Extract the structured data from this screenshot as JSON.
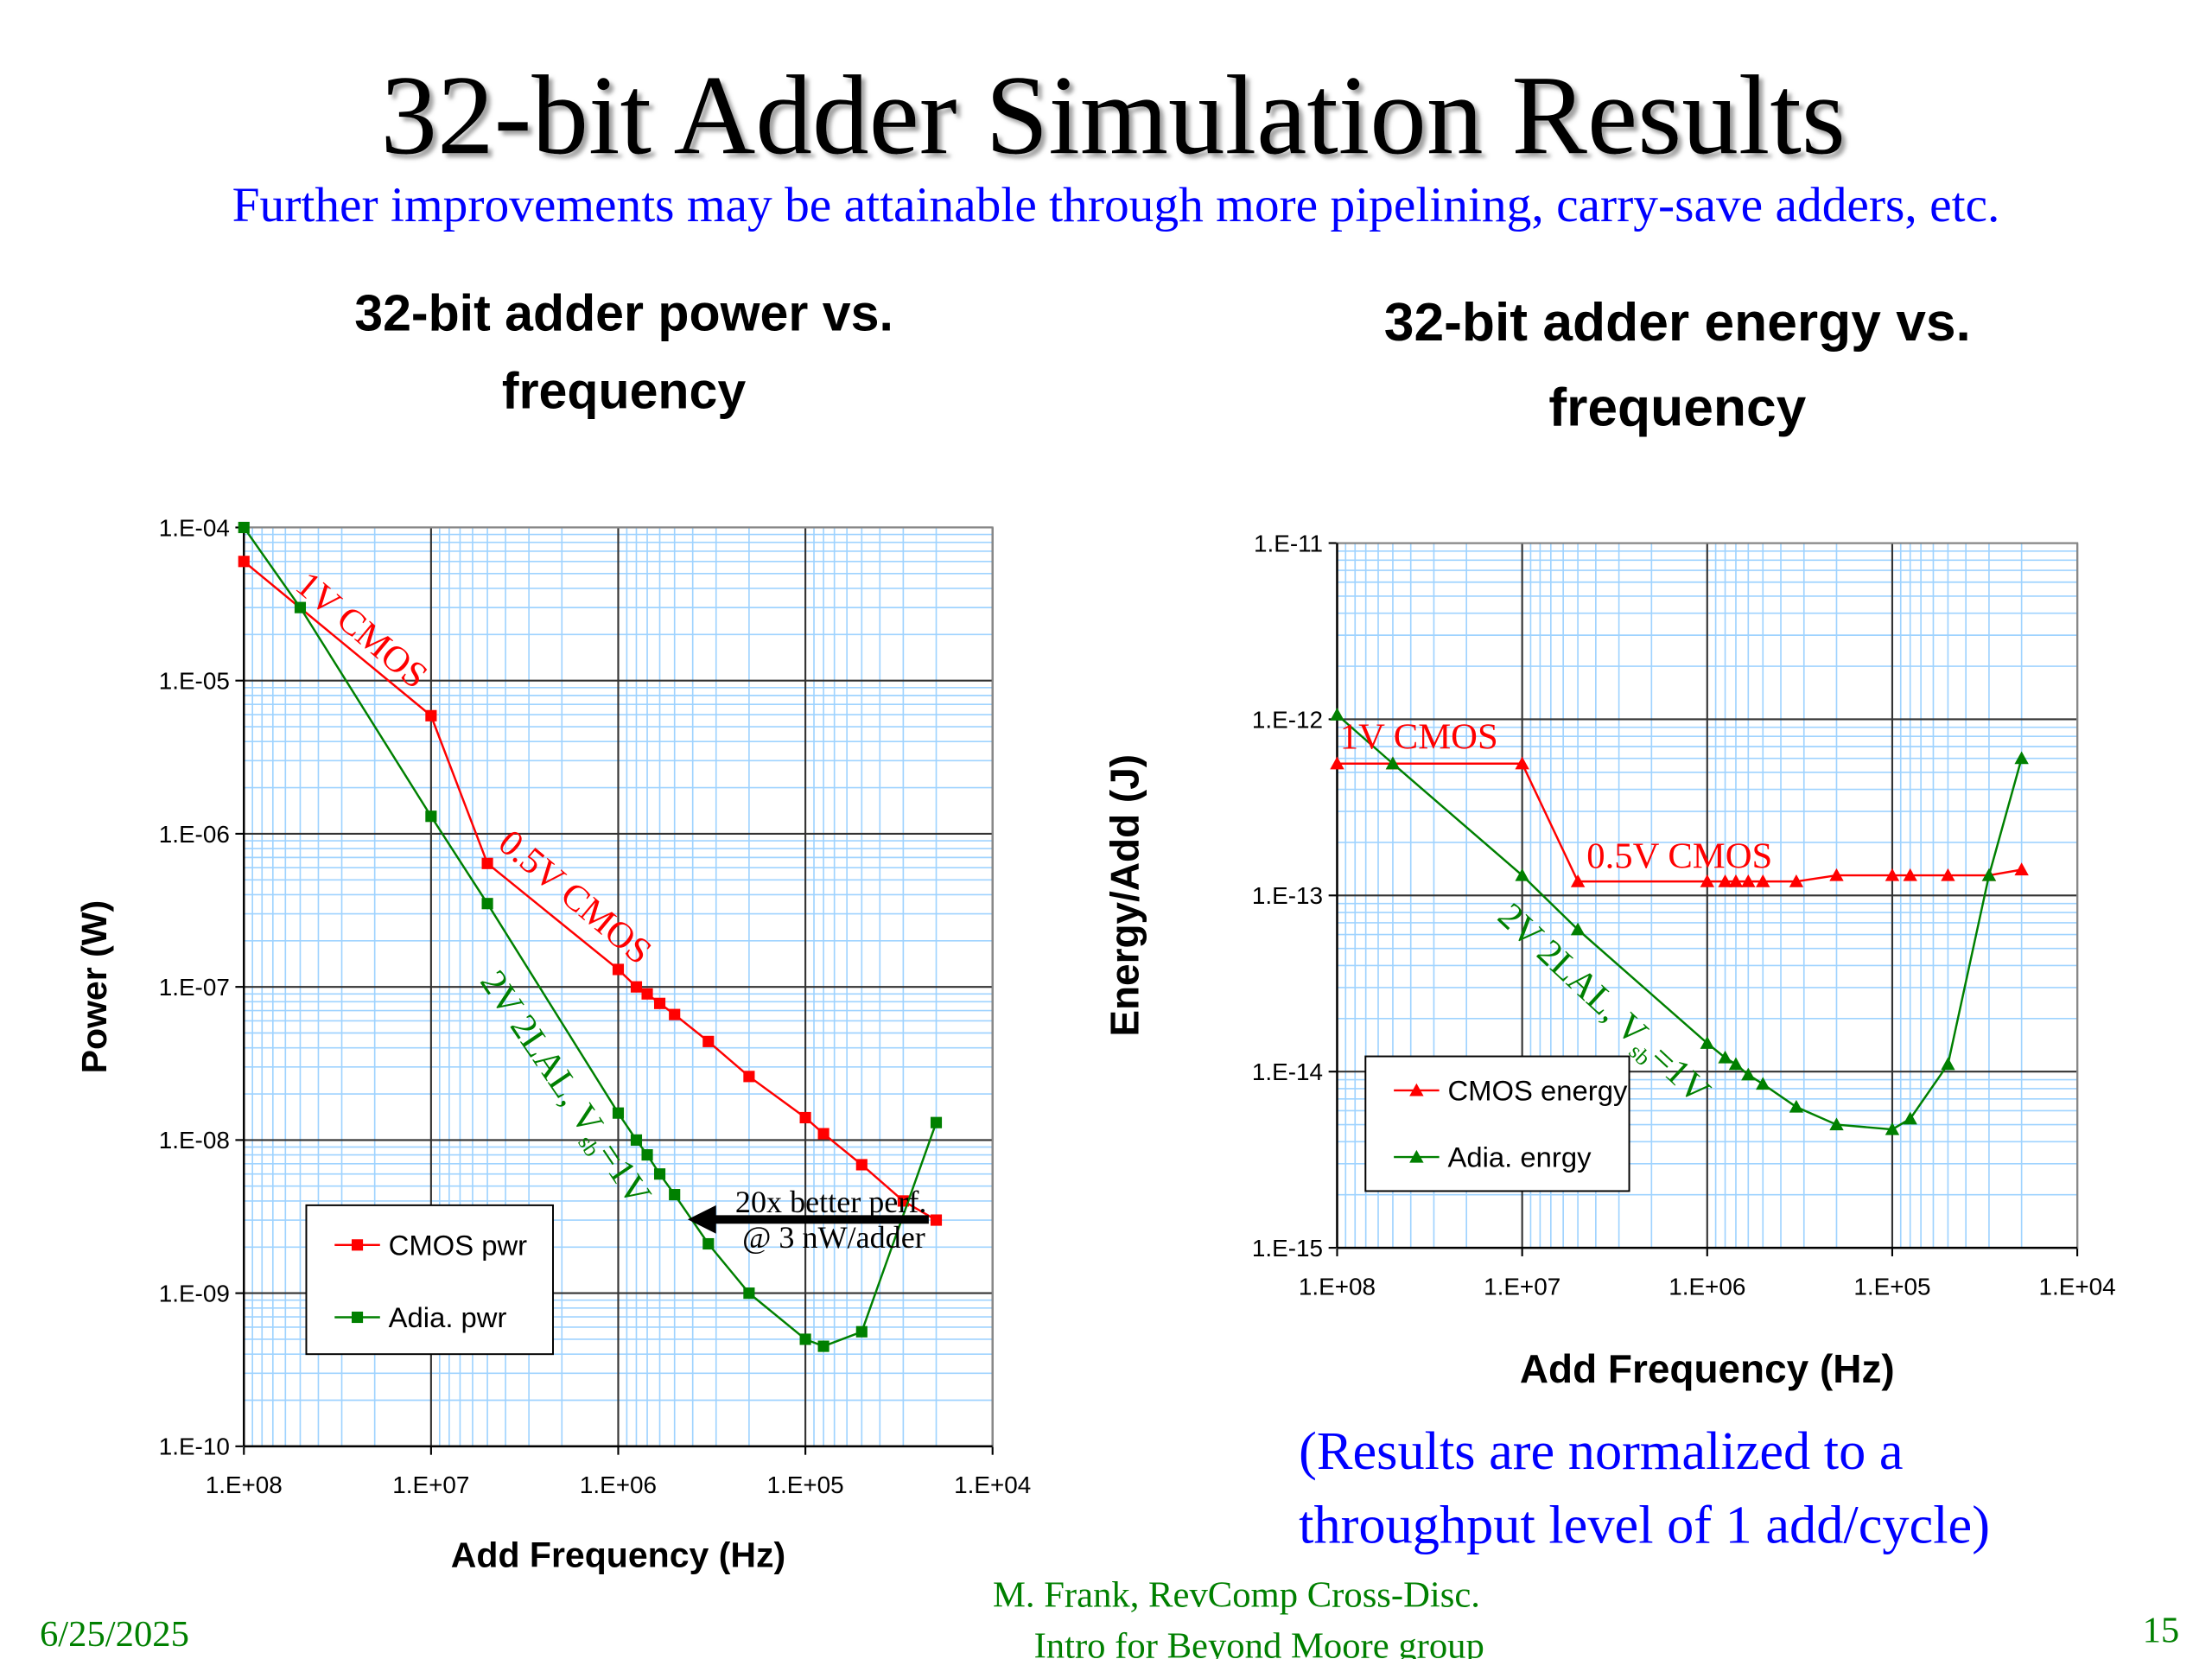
{
  "header": {
    "title": "32-bit Adder Simulation Results",
    "subtitle": "Further improvements may be attainable through more pipelining, carry-save adders, etc."
  },
  "chart_data": [
    {
      "type": "line",
      "title": [
        "32-bit adder power vs.",
        "frequency"
      ],
      "x_label": "Add Frequency  (Hz)",
      "y_label": "Power (W)",
      "xscale": "log",
      "yscale": "log",
      "xlim": [
        100000000,
        10000
      ],
      "ylim": [
        1e-10,
        0.0001
      ],
      "xticks": [
        {
          "value": 100000000,
          "label": "1.E+08"
        },
        {
          "value": 10000000,
          "label": "1.E+07"
        },
        {
          "value": 1000000,
          "label": "1.E+06"
        },
        {
          "value": 100000,
          "label": "1.E+05"
        },
        {
          "value": 10000,
          "label": "1.E+04"
        }
      ],
      "yticks": [
        {
          "value": 1e-10,
          "label": "1.E-10"
        },
        {
          "value": 1e-09,
          "label": "1.E-09"
        },
        {
          "value": 1e-08,
          "label": "1.E-08"
        },
        {
          "value": 1e-07,
          "label": "1.E-07"
        },
        {
          "value": 1e-06,
          "label": "1.E-06"
        },
        {
          "value": 1e-05,
          "label": "1.E-05"
        },
        {
          "value": 0.0001,
          "label": "1.E-04"
        }
      ],
      "grid": true,
      "minor_grid": true,
      "series": [
        {
          "name": "CMOS pwr",
          "color": "#ff0000",
          "marker": "square",
          "x": [
            100000000,
            10000000,
            5000000,
            1000000,
            800000,
            700000,
            600000,
            500000,
            330000,
            200000,
            100000,
            80000,
            50000,
            30000,
            20000
          ],
          "values": [
            6e-05,
            5.9e-06,
            6.4e-07,
            1.3e-07,
            1e-07,
            9e-08,
            7.8e-08,
            6.6e-08,
            4.4e-08,
            2.6e-08,
            1.4e-08,
            1.1e-08,
            6.9e-09,
            4e-09,
            3e-09
          ]
        },
        {
          "name": "Adia. pwr",
          "color": "#008000",
          "marker": "square",
          "x": [
            100000000,
            50000000,
            10000000,
            5000000,
            1000000,
            800000,
            700000,
            600000,
            500000,
            330000,
            200000,
            100000,
            80000,
            50000,
            20000
          ],
          "values": [
            0.0001,
            3e-05,
            1.3e-06,
            3.5e-07,
            1.5e-08,
            1e-08,
            8e-09,
            6e-09,
            4.4e-09,
            2.1e-09,
            1e-09,
            5e-10,
            4.5e-10,
            5.6e-10,
            1.3e-08
          ]
        }
      ],
      "annotations": [
        {
          "text": "1V CMOS",
          "color": "#ff0000"
        },
        {
          "text": "0.5V CMOS",
          "color": "#ff0000"
        },
        {
          "text": "2V 2LAL, V",
          "sub": "sb",
          "after": "=1V",
          "color": "#008000"
        },
        {
          "text": "20x better perf.",
          "color": "#000000"
        },
        {
          "text": "@ 3 nW/adder",
          "color": "#000000"
        }
      ]
    },
    {
      "type": "line",
      "title": [
        "32-bit adder energy vs.",
        "frequency"
      ],
      "x_label": "Add Frequency  (Hz)",
      "y_label": "Energy/Add (J)",
      "xscale": "log",
      "yscale": "log",
      "xlim": [
        100000000,
        10000
      ],
      "ylim": [
        1e-15,
        1e-11
      ],
      "xticks": [
        {
          "value": 100000000,
          "label": "1.E+08"
        },
        {
          "value": 10000000,
          "label": "1.E+07"
        },
        {
          "value": 1000000,
          "label": "1.E+06"
        },
        {
          "value": 100000,
          "label": "1.E+05"
        },
        {
          "value": 10000,
          "label": "1.E+04"
        }
      ],
      "yticks": [
        {
          "value": 1e-15,
          "label": "1.E-15"
        },
        {
          "value": 1e-14,
          "label": "1.E-14"
        },
        {
          "value": 1e-13,
          "label": "1.E-13"
        },
        {
          "value": 1e-12,
          "label": "1.E-12"
        },
        {
          "value": 1e-11,
          "label": "1.E-11"
        }
      ],
      "grid": true,
      "minor_grid": true,
      "series": [
        {
          "name": "CMOS energy",
          "color": "#ff0000",
          "marker": "triangle",
          "x": [
            100000000,
            50000000,
            10000000,
            5000000,
            1000000,
            800000,
            700000,
            600000,
            500000,
            330000,
            200000,
            100000,
            80000,
            50000,
            30000,
            20000
          ],
          "values": [
            5.6e-13,
            5.6e-13,
            5.6e-13,
            1.2e-13,
            1.2e-13,
            1.2e-13,
            1.2e-13,
            1.2e-13,
            1.2e-13,
            1.2e-13,
            1.3e-13,
            1.3e-13,
            1.3e-13,
            1.3e-13,
            1.3e-13,
            1.4e-13
          ]
        },
        {
          "name": "Adia. enrgy",
          "color": "#008000",
          "marker": "triangle",
          "x": [
            100000000,
            50000000,
            10000000,
            5000000,
            1000000,
            800000,
            700000,
            600000,
            500000,
            330000,
            200000,
            100000,
            80000,
            50000,
            30000,
            20000
          ],
          "values": [
            1.06e-12,
            5.6e-13,
            1.3e-13,
            6.4e-14,
            1.45e-14,
            1.2e-14,
            1.1e-14,
            9.6e-15,
            8.5e-15,
            6.3e-15,
            5e-15,
            4.7e-15,
            5.4e-15,
            1.1e-14,
            1.3e-13,
            6e-13
          ]
        }
      ],
      "annotations": [
        {
          "text": "1V CMOS",
          "color": "#ff0000"
        },
        {
          "text": "0.5V CMOS",
          "color": "#ff0000"
        },
        {
          "text": "2V 2LAL, V",
          "sub": "sb",
          "after": "=1V",
          "color": "#008000"
        }
      ]
    }
  ],
  "note": [
    "(Results are normalized to a",
    "throughput level of 1 add/cycle)"
  ],
  "footer": {
    "date": "6/25/2025",
    "author": [
      "M. Frank, RevComp Cross-Disc.",
      "Intro for Beyond Moore group"
    ],
    "page": "15"
  }
}
